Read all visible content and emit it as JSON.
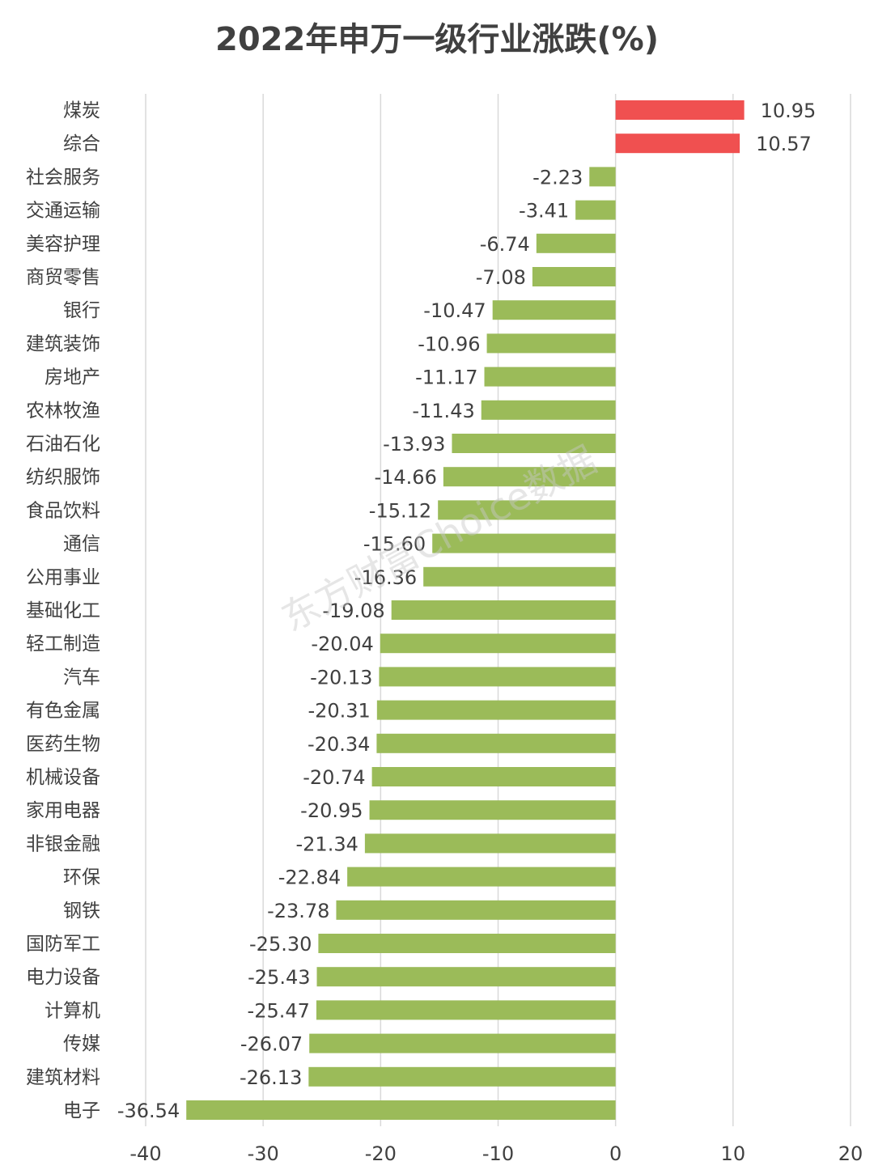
{
  "chart_data": {
    "type": "bar",
    "orientation": "horizontal",
    "title": "2022年申万一级行业涨跌(%)",
    "xlabel": "",
    "ylabel": "",
    "xlim": [
      -40,
      20
    ],
    "x_ticks": [
      -40,
      -30,
      -20,
      -10,
      0,
      10,
      20
    ],
    "grid": true,
    "legend": "none",
    "positive_color": "#f05050",
    "negative_color": "#9bbb59",
    "categories": [
      "煤炭",
      "综合",
      "社会服务",
      "交通运输",
      "美容护理",
      "商贸零售",
      "银行",
      "建筑装饰",
      "房地产",
      "农林牧渔",
      "石油石化",
      "纺织服饰",
      "食品饮料",
      "通信",
      "公用事业",
      "基础化工",
      "轻工制造",
      "汽车",
      "有色金属",
      "医药生物",
      "机械设备",
      "家用电器",
      "非银金融",
      "环保",
      "钢铁",
      "国防军工",
      "电力设备",
      "计算机",
      "传媒",
      "建筑材料",
      "电子"
    ],
    "values": [
      10.95,
      10.57,
      -2.23,
      -3.41,
      -6.74,
      -7.08,
      -10.47,
      -10.96,
      -11.17,
      -11.43,
      -13.93,
      -14.66,
      -15.12,
      -15.6,
      -16.36,
      -19.08,
      -20.04,
      -20.13,
      -20.31,
      -20.34,
      -20.74,
      -20.95,
      -21.34,
      -22.84,
      -23.78,
      -25.3,
      -25.43,
      -25.47,
      -26.07,
      -26.13,
      -36.54
    ],
    "value_labels": [
      "10.95",
      "10.57",
      "-2.23",
      "-3.41",
      "-6.74",
      "-7.08",
      "-10.47",
      "-10.96",
      "-11.17",
      "-11.43",
      "-13.93",
      "-14.66",
      "-15.12",
      "-15.60",
      "-16.36",
      "-19.08",
      "-20.04",
      "-20.13",
      "-20.31",
      "-20.34",
      "-20.74",
      "-20.95",
      "-21.34",
      "-22.84",
      "-23.78",
      "-25.30",
      "-25.43",
      "-25.47",
      "-26.07",
      "-26.13",
      "-36.54"
    ],
    "watermark": "东方财富Choice数据"
  }
}
